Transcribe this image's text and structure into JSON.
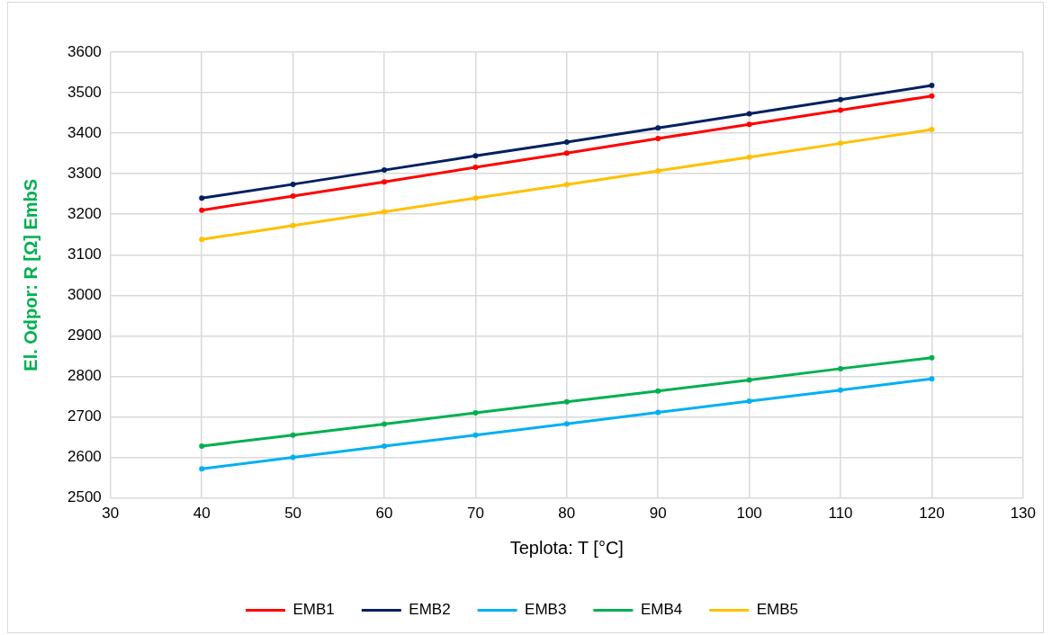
{
  "chart_data": {
    "type": "line",
    "xlabel": "Teplota: T [°C]",
    "ylabel": "El. Odpor: R [Ω] EmbS",
    "x": [
      40,
      50,
      60,
      70,
      80,
      90,
      100,
      110,
      120
    ],
    "series": [
      {
        "name": "EMB1",
        "color": "#ff0000",
        "values": [
          3210,
          3245,
          3280,
          3316,
          3351,
          3387,
          3422,
          3457,
          3492
        ]
      },
      {
        "name": "EMB2",
        "color": "#002060",
        "values": [
          3240,
          3274,
          3309,
          3344,
          3378,
          3413,
          3448,
          3483,
          3518
        ]
      },
      {
        "name": "EMB3",
        "color": "#00b0f0",
        "values": [
          2572,
          2600,
          2628,
          2655,
          2683,
          2711,
          2739,
          2766,
          2794
        ]
      },
      {
        "name": "EMB4",
        "color": "#00b050",
        "values": [
          2628,
          2655,
          2682,
          2710,
          2737,
          2764,
          2791,
          2819,
          2846
        ]
      },
      {
        "name": "EMB5",
        "color": "#ffc000",
        "values": [
          3138,
          3172,
          3206,
          3240,
          3273,
          3307,
          3341,
          3375,
          3409
        ]
      }
    ],
    "xlim": [
      30,
      130
    ],
    "xticks": [
      30,
      40,
      50,
      60,
      70,
      80,
      90,
      100,
      110,
      120,
      130
    ],
    "ylim": [
      2500,
      3600
    ],
    "yticks": [
      2500,
      2600,
      2700,
      2800,
      2900,
      3000,
      3100,
      3200,
      3300,
      3400,
      3500,
      3600
    ],
    "grid": true,
    "legend": "bottom",
    "marker": "circle",
    "line_style": "solid"
  }
}
